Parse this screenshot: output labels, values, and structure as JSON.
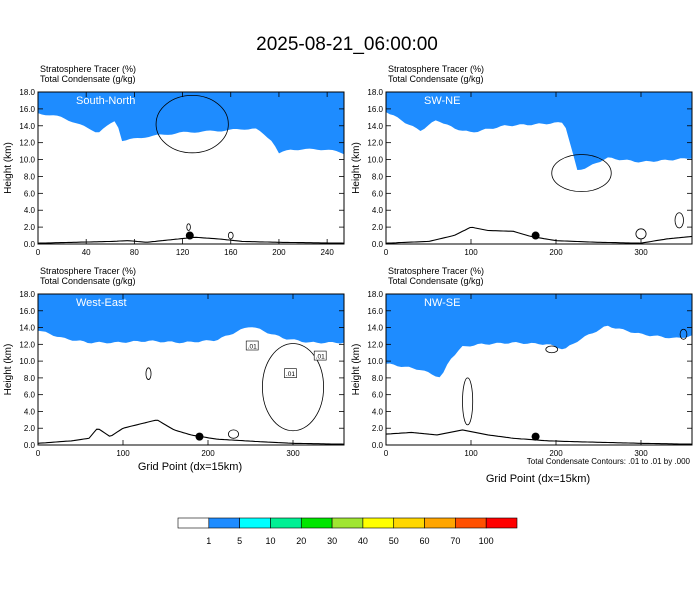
{
  "figure": {
    "title": "2025-08-21_06:00:00",
    "footnote": "Total Condensate Contours: .01 to .01 by .000",
    "xlabel": "Grid Point (dx=15km)",
    "ylabel": "Height (km)"
  },
  "colorbar": {
    "labels": [
      "1",
      "5",
      "10",
      "20",
      "30",
      "40",
      "50",
      "60",
      "70",
      "100"
    ],
    "colors": [
      "#ffffff",
      "#1e8cff",
      "#00ffff",
      "#00f094",
      "#00e600",
      "#a0e632",
      "#ffff00",
      "#ffd700",
      "#ffa500",
      "#ff5000",
      "#ff0000"
    ]
  },
  "chart_data": [
    {
      "type": "heatmap",
      "panel": "South-North",
      "header_lines": [
        "Stratosphere Tracer   (%)",
        "Total Condensate   (g/kg)"
      ],
      "xlim": [
        0,
        254
      ],
      "ylim": [
        0,
        18
      ],
      "x_ticks": [
        "0",
        "40",
        "80",
        "120",
        "160",
        "200",
        "240"
      ],
      "y_ticks": [
        "0.0",
        "2.0",
        "4.0",
        "6.0",
        "8.0",
        "10.0",
        "12.0",
        "14.0",
        "16.0",
        "18.0"
      ],
      "tracer_bottom_km": {
        "x": [
          0,
          20,
          50,
          65,
          70,
          90,
          120,
          150,
          180,
          195,
          200,
          210,
          240,
          254
        ],
        "y": [
          15.3,
          14.8,
          13.0,
          14.5,
          12.0,
          12.5,
          13.0,
          13.2,
          13.5,
          12.0,
          10.5,
          11.0,
          11.0,
          10.5
        ]
      },
      "terrain_km": {
        "x": [
          0,
          30,
          60,
          75,
          90,
          110,
          130,
          150,
          170,
          200,
          254
        ],
        "y": [
          0.1,
          0.2,
          0.3,
          0.4,
          0.2,
          0.5,
          0.8,
          0.6,
          0.3,
          0.2,
          0.1
        ]
      },
      "marker": {
        "x": 126,
        "y": 1.0
      },
      "grid": false
    },
    {
      "type": "heatmap",
      "panel": "SW-NE",
      "header_lines": [
        "Stratosphere Tracer   (%)",
        "Total Condensate   (g/kg)"
      ],
      "xlim": [
        0,
        360
      ],
      "ylim": [
        0,
        18
      ],
      "x_ticks": [
        "0",
        "100",
        "200",
        "300"
      ],
      "y_ticks": [
        "0.0",
        "2.0",
        "4.0",
        "6.0",
        "8.0",
        "10.0",
        "12.0",
        "14.0",
        "16.0",
        "18.0"
      ],
      "tracer_bottom_km": {
        "x": [
          0,
          40,
          60,
          80,
          100,
          140,
          180,
          210,
          225,
          240,
          260,
          300,
          340,
          360
        ],
        "y": [
          15.5,
          13.2,
          14.5,
          13.5,
          13.0,
          13.8,
          14.0,
          14.2,
          8.5,
          9.0,
          10.0,
          9.5,
          9.8,
          10.0
        ]
      },
      "terrain_km": {
        "x": [
          0,
          50,
          80,
          100,
          120,
          150,
          170,
          200,
          250,
          300,
          330,
          360
        ],
        "y": [
          0.1,
          0.3,
          1.0,
          2.0,
          1.6,
          1.5,
          0.9,
          0.4,
          0.2,
          0.1,
          0.6,
          0.9
        ]
      },
      "marker": {
        "x": 176,
        "y": 1.0
      },
      "grid": false
    },
    {
      "type": "heatmap",
      "panel": "West-East",
      "header_lines": [
        "Stratosphere Tracer   (%)",
        "Total Condensate   (g/kg)"
      ],
      "xlim": [
        0,
        360
      ],
      "ylim": [
        0,
        18
      ],
      "x_ticks": [
        "0",
        "100",
        "200",
        "300"
      ],
      "y_ticks": [
        "0.0",
        "2.0",
        "4.0",
        "6.0",
        "8.0",
        "10.0",
        "12.0",
        "14.0",
        "16.0",
        "18.0"
      ],
      "contour_labels": [
        ".01",
        ".01",
        ".01"
      ],
      "tracer_bottom_km": {
        "x": [
          0,
          30,
          60,
          90,
          130,
          170,
          210,
          250,
          270,
          290,
          320,
          360
        ],
        "y": [
          13.5,
          12.5,
          12.0,
          12.0,
          12.2,
          12.0,
          12.3,
          14.0,
          13.2,
          12.5,
          12.0,
          12.0
        ]
      },
      "terrain_km": {
        "x": [
          0,
          40,
          60,
          70,
          85,
          100,
          120,
          140,
          160,
          180,
          210,
          260,
          300,
          360
        ],
        "y": [
          0.2,
          0.5,
          0.8,
          2.0,
          1.0,
          2.0,
          2.5,
          3.0,
          1.8,
          1.2,
          0.7,
          0.4,
          0.2,
          0.1
        ]
      },
      "marker": {
        "x": 190,
        "y": 1.0
      },
      "grid": false
    },
    {
      "type": "heatmap",
      "panel": "NW-SE",
      "header_lines": [
        "Stratosphere Tracer   (%)",
        "Total Condensate   (g/kg)"
      ],
      "xlim": [
        0,
        360
      ],
      "ylim": [
        0,
        18
      ],
      "x_ticks": [
        "0",
        "100",
        "200",
        "300"
      ],
      "y_ticks": [
        "0.0",
        "2.0",
        "4.0",
        "6.0",
        "8.0",
        "10.0",
        "12.0",
        "14.0",
        "16.0",
        "18.0"
      ],
      "tracer_bottom_km": {
        "x": [
          0,
          40,
          65,
          75,
          90,
          110,
          150,
          190,
          210,
          230,
          260,
          300,
          340,
          360
        ],
        "y": [
          9.5,
          8.8,
          7.8,
          10.0,
          11.5,
          11.8,
          12.0,
          11.8,
          11.2,
          12.5,
          14.0,
          13.0,
          12.5,
          12.8
        ]
      },
      "terrain_km": {
        "x": [
          0,
          30,
          60,
          90,
          120,
          150,
          190,
          220,
          260,
          300,
          360
        ],
        "y": [
          1.3,
          1.5,
          1.2,
          1.8,
          1.2,
          0.8,
          0.5,
          0.4,
          0.3,
          0.2,
          0.1
        ]
      },
      "marker": {
        "x": 176,
        "y": 1.0
      },
      "grid": false
    }
  ]
}
